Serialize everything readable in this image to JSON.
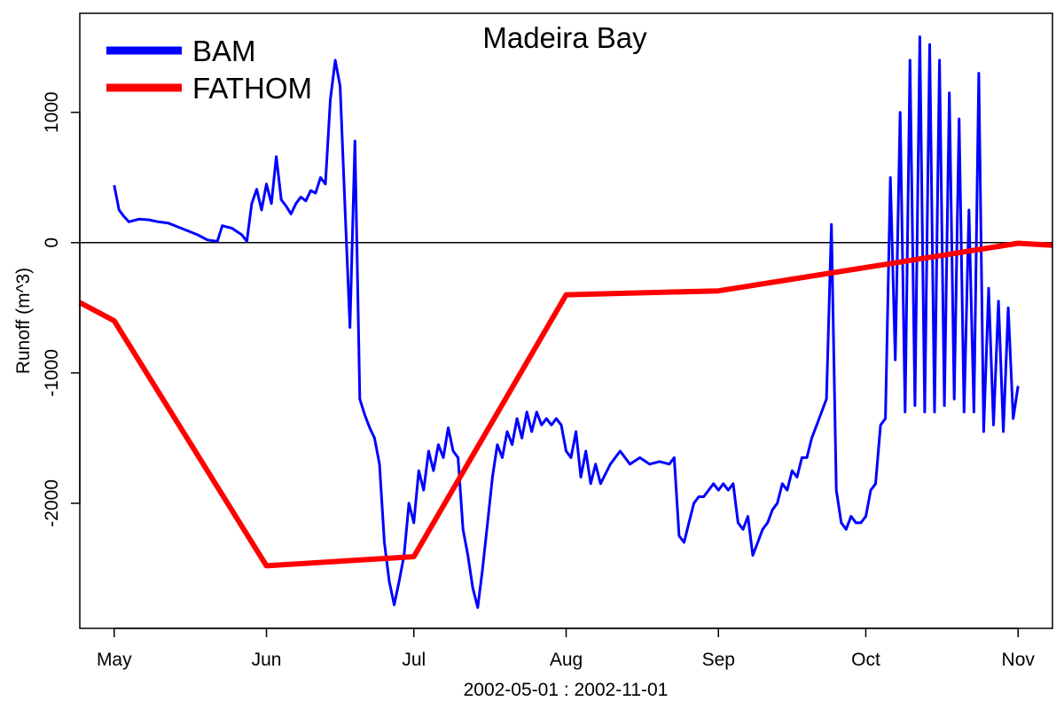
{
  "chart_data": {
    "type": "line",
    "title": "Madeira Bay",
    "xlabel": "2002-05-01 : 2002-11-01",
    "ylabel": "Runoff (m^3)",
    "x_tick_labels": [
      "May",
      "Jun",
      "Jul",
      "Aug",
      "Sep",
      "Oct",
      "Nov"
    ],
    "x_tick_dates": [
      "2002-05-01",
      "2002-06-01",
      "2002-07-01",
      "2002-08-01",
      "2002-09-01",
      "2002-10-01",
      "2002-11-01"
    ],
    "xlim": [
      "2002-04-24",
      "2002-11-08"
    ],
    "y_tick_labels": [
      "-2000",
      "-1000",
      "0",
      "1000"
    ],
    "y_tick_values": [
      -2000,
      -1000,
      0,
      1000
    ],
    "ylim": [
      -2960,
      1760
    ],
    "reference_line_y": 0,
    "legend_position": "top-left",
    "series": [
      {
        "name": "BAM",
        "color": "#0000ff",
        "points": [
          [
            "2002-05-01",
            440
          ],
          [
            "2002-05-02",
            250
          ],
          [
            "2002-05-03",
            200
          ],
          [
            "2002-05-04",
            160
          ],
          [
            "2002-05-06",
            180
          ],
          [
            "2002-05-08",
            175
          ],
          [
            "2002-05-10",
            160
          ],
          [
            "2002-05-12",
            150
          ],
          [
            "2002-05-14",
            120
          ],
          [
            "2002-05-16",
            90
          ],
          [
            "2002-05-18",
            60
          ],
          [
            "2002-05-20",
            20
          ],
          [
            "2002-05-22",
            10
          ],
          [
            "2002-05-23",
            130
          ],
          [
            "2002-05-25",
            110
          ],
          [
            "2002-05-27",
            60
          ],
          [
            "2002-05-28",
            10
          ],
          [
            "2002-05-29",
            300
          ],
          [
            "2002-05-30",
            410
          ],
          [
            "2002-05-31",
            250
          ],
          [
            "2002-06-01",
            450
          ],
          [
            "2002-06-02",
            300
          ],
          [
            "2002-06-03",
            660
          ],
          [
            "2002-06-04",
            330
          ],
          [
            "2002-06-05",
            280
          ],
          [
            "2002-06-06",
            220
          ],
          [
            "2002-06-07",
            300
          ],
          [
            "2002-06-08",
            350
          ],
          [
            "2002-06-09",
            320
          ],
          [
            "2002-06-10",
            400
          ],
          [
            "2002-06-11",
            380
          ],
          [
            "2002-06-12",
            500
          ],
          [
            "2002-06-13",
            450
          ],
          [
            "2002-06-14",
            1100
          ],
          [
            "2002-06-15",
            1400
          ],
          [
            "2002-06-16",
            1200
          ],
          [
            "2002-06-17",
            250
          ],
          [
            "2002-06-18",
            -650
          ],
          [
            "2002-06-19",
            780
          ],
          [
            "2002-06-20",
            -1200
          ],
          [
            "2002-06-21",
            -1320
          ],
          [
            "2002-06-22",
            -1420
          ],
          [
            "2002-06-23",
            -1500
          ],
          [
            "2002-06-24",
            -1700
          ],
          [
            "2002-06-25",
            -2300
          ],
          [
            "2002-06-26",
            -2600
          ],
          [
            "2002-06-27",
            -2780
          ],
          [
            "2002-06-28",
            -2600
          ],
          [
            "2002-06-29",
            -2400
          ],
          [
            "2002-06-30",
            -2000
          ],
          [
            "2002-07-01",
            -2150
          ],
          [
            "2002-07-02",
            -1750
          ],
          [
            "2002-07-03",
            -1900
          ],
          [
            "2002-07-04",
            -1600
          ],
          [
            "2002-07-05",
            -1750
          ],
          [
            "2002-07-06",
            -1550
          ],
          [
            "2002-07-07",
            -1650
          ],
          [
            "2002-07-08",
            -1420
          ],
          [
            "2002-07-09",
            -1600
          ],
          [
            "2002-07-10",
            -1650
          ],
          [
            "2002-07-11",
            -2200
          ],
          [
            "2002-07-12",
            -2400
          ],
          [
            "2002-07-13",
            -2650
          ],
          [
            "2002-07-14",
            -2800
          ],
          [
            "2002-07-15",
            -2500
          ],
          [
            "2002-07-16",
            -2150
          ],
          [
            "2002-07-17",
            -1800
          ],
          [
            "2002-07-18",
            -1550
          ],
          [
            "2002-07-19",
            -1650
          ],
          [
            "2002-07-20",
            -1450
          ],
          [
            "2002-07-21",
            -1550
          ],
          [
            "2002-07-22",
            -1350
          ],
          [
            "2002-07-23",
            -1500
          ],
          [
            "2002-07-24",
            -1300
          ],
          [
            "2002-07-25",
            -1450
          ],
          [
            "2002-07-26",
            -1300
          ],
          [
            "2002-07-27",
            -1400
          ],
          [
            "2002-07-28",
            -1350
          ],
          [
            "2002-07-29",
            -1400
          ],
          [
            "2002-07-30",
            -1350
          ],
          [
            "2002-07-31",
            -1400
          ],
          [
            "2002-08-01",
            -1600
          ],
          [
            "2002-08-02",
            -1650
          ],
          [
            "2002-08-03",
            -1450
          ],
          [
            "2002-08-04",
            -1800
          ],
          [
            "2002-08-05",
            -1600
          ],
          [
            "2002-08-06",
            -1850
          ],
          [
            "2002-08-07",
            -1700
          ],
          [
            "2002-08-08",
            -1850
          ],
          [
            "2002-08-10",
            -1700
          ],
          [
            "2002-08-12",
            -1600
          ],
          [
            "2002-08-14",
            -1700
          ],
          [
            "2002-08-16",
            -1650
          ],
          [
            "2002-08-18",
            -1700
          ],
          [
            "2002-08-20",
            -1680
          ],
          [
            "2002-08-22",
            -1700
          ],
          [
            "2002-08-23",
            -1650
          ],
          [
            "2002-08-24",
            -2250
          ],
          [
            "2002-08-25",
            -2300
          ],
          [
            "2002-08-26",
            -2150
          ],
          [
            "2002-08-27",
            -2000
          ],
          [
            "2002-08-28",
            -1950
          ],
          [
            "2002-08-29",
            -1950
          ],
          [
            "2002-08-30",
            -1900
          ],
          [
            "2002-08-31",
            -1850
          ],
          [
            "2002-09-01",
            -1900
          ],
          [
            "2002-09-02",
            -1850
          ],
          [
            "2002-09-03",
            -1900
          ],
          [
            "2002-09-04",
            -1850
          ],
          [
            "2002-09-05",
            -2150
          ],
          [
            "2002-09-06",
            -2200
          ],
          [
            "2002-09-07",
            -2100
          ],
          [
            "2002-09-08",
            -2400
          ],
          [
            "2002-09-09",
            -2300
          ],
          [
            "2002-09-10",
            -2200
          ],
          [
            "2002-09-11",
            -2150
          ],
          [
            "2002-09-12",
            -2050
          ],
          [
            "2002-09-13",
            -2000
          ],
          [
            "2002-09-14",
            -1850
          ],
          [
            "2002-09-15",
            -1900
          ],
          [
            "2002-09-16",
            -1750
          ],
          [
            "2002-09-17",
            -1800
          ],
          [
            "2002-09-18",
            -1650
          ],
          [
            "2002-09-19",
            -1650
          ],
          [
            "2002-09-20",
            -1500
          ],
          [
            "2002-09-21",
            -1400
          ],
          [
            "2002-09-22",
            -1300
          ],
          [
            "2002-09-23",
            -1200
          ],
          [
            "2002-09-24",
            140
          ],
          [
            "2002-09-25",
            -1900
          ],
          [
            "2002-09-26",
            -2150
          ],
          [
            "2002-09-27",
            -2200
          ],
          [
            "2002-09-28",
            -2100
          ],
          [
            "2002-09-29",
            -2150
          ],
          [
            "2002-09-30",
            -2150
          ],
          [
            "2002-10-01",
            -2100
          ],
          [
            "2002-10-02",
            -1900
          ],
          [
            "2002-10-03",
            -1850
          ],
          [
            "2002-10-04",
            -1400
          ],
          [
            "2002-10-05",
            -1350
          ],
          [
            "2002-10-06",
            500
          ],
          [
            "2002-10-07",
            -900
          ],
          [
            "2002-10-08",
            1000
          ],
          [
            "2002-10-09",
            -1300
          ],
          [
            "2002-10-10",
            1400
          ],
          [
            "2002-10-11",
            -1250
          ],
          [
            "2002-10-12",
            1580
          ],
          [
            "2002-10-13",
            -1300
          ],
          [
            "2002-10-14",
            1520
          ],
          [
            "2002-10-15",
            -1300
          ],
          [
            "2002-10-16",
            1400
          ],
          [
            "2002-10-17",
            -1250
          ],
          [
            "2002-10-18",
            1150
          ],
          [
            "2002-10-19",
            -1200
          ],
          [
            "2002-10-20",
            950
          ],
          [
            "2002-10-21",
            -1300
          ],
          [
            "2002-10-22",
            250
          ],
          [
            "2002-10-23",
            -1300
          ],
          [
            "2002-10-24",
            1300
          ],
          [
            "2002-10-25",
            -1450
          ],
          [
            "2002-10-26",
            -350
          ],
          [
            "2002-10-27",
            -1400
          ],
          [
            "2002-10-28",
            -450
          ],
          [
            "2002-10-29",
            -1450
          ],
          [
            "2002-10-30",
            -500
          ],
          [
            "2002-10-31",
            -1350
          ],
          [
            "2002-11-01",
            -1100
          ]
        ]
      },
      {
        "name": "FATHOM",
        "color": "#ff0000",
        "points": [
          [
            "2002-04-24",
            -460
          ],
          [
            "2002-05-01",
            -600
          ],
          [
            "2002-06-01",
            -2480
          ],
          [
            "2002-07-01",
            -2410
          ],
          [
            "2002-08-01",
            -400
          ],
          [
            "2002-09-01",
            -370
          ],
          [
            "2002-11-01",
            -5
          ],
          [
            "2002-11-08",
            -20
          ]
        ]
      }
    ]
  }
}
